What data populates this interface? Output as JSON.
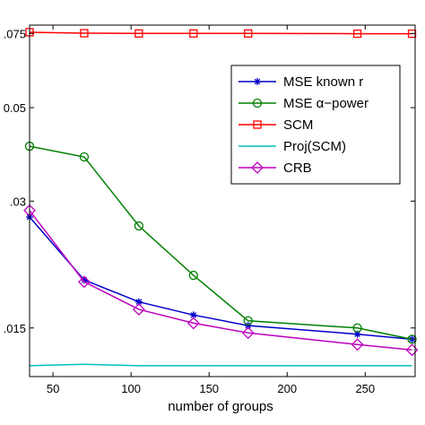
{
  "chart_data": {
    "type": "line",
    "xlabel": "number of groups",
    "ylabel": "",
    "xlim": [
      35,
      282
    ],
    "ylim": [
      0.0115,
      0.0785
    ],
    "y_scale": "log",
    "grid": false,
    "legend_placement": "top-right",
    "x_ticks": [
      50,
      100,
      150,
      200,
      250
    ],
    "x_tick_labels": [
      "50",
      "100",
      "150",
      "200",
      "250"
    ],
    "y_ticks": [
      0.015,
      0.03,
      0.05,
      0.075
    ],
    "y_tick_labels": [
      ".015",
      ".03",
      "0.05",
      ".075"
    ],
    "series": [
      {
        "name": "MSE known r",
        "color": "#0000cc",
        "marker": "asterisk",
        "x": [
          35,
          70,
          105,
          140,
          175,
          245,
          280
        ],
        "y": [
          0.0275,
          0.0195,
          0.0173,
          0.0161,
          0.0152,
          0.0145,
          0.0141
        ]
      },
      {
        "name": "MSE α−power",
        "color": "#008000",
        "marker": "circle",
        "x": [
          35,
          70,
          105,
          140,
          175,
          245,
          280
        ],
        "y": [
          0.0405,
          0.0382,
          0.0262,
          0.02,
          0.0156,
          0.015,
          0.0141
        ]
      },
      {
        "name": "SCM",
        "color": "#ff0000",
        "marker": "square",
        "x": [
          35,
          70,
          105,
          140,
          175,
          245,
          280
        ],
        "y": [
          0.0755,
          0.0751,
          0.075,
          0.075,
          0.075,
          0.0749,
          0.0749
        ]
      },
      {
        "name": "Proj(SCM)",
        "color": "#00bfbf",
        "marker": "none",
        "x": [
          35,
          70,
          105,
          140,
          175,
          245,
          280
        ],
        "y": [
          0.0122,
          0.0123,
          0.0122,
          0.0122,
          0.0122,
          0.0122,
          0.0122
        ]
      },
      {
        "name": "CRB",
        "color": "#bf00bf",
        "marker": "diamond",
        "x": [
          35,
          70,
          105,
          140,
          175,
          245,
          280
        ],
        "y": [
          0.0285,
          0.0193,
          0.0166,
          0.0154,
          0.0146,
          0.0137,
          0.0133
        ]
      }
    ]
  }
}
